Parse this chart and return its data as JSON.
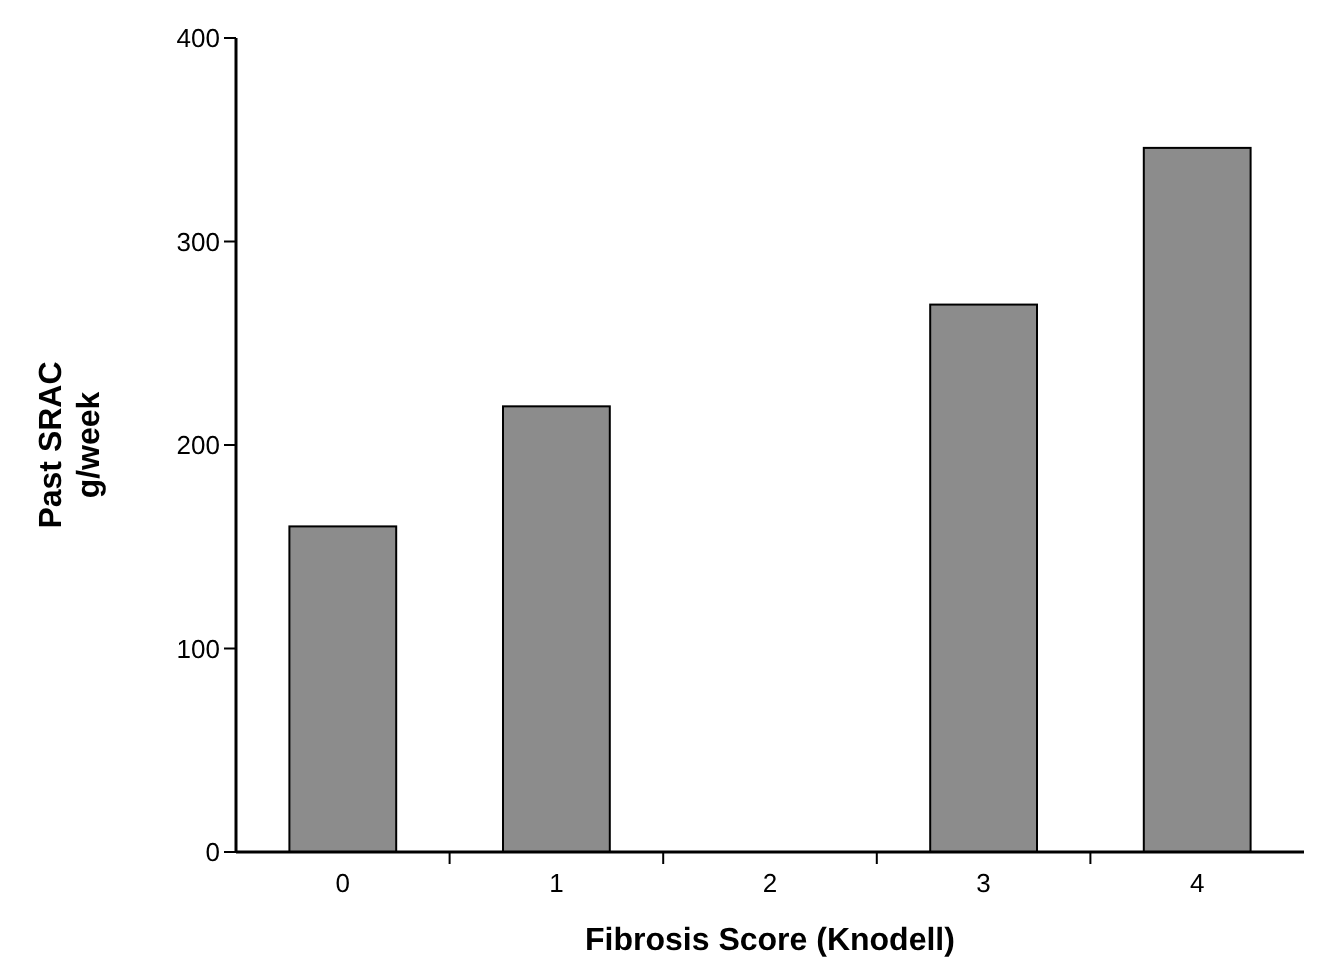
{
  "chart_data": {
    "type": "bar",
    "xlabel": "Fibrosis Score (Knodell)",
    "ylabel": "Past SRAC\ng/week",
    "categories": [
      "0",
      "1",
      "2",
      "3",
      "4"
    ],
    "values": [
      160,
      219,
      null,
      269,
      346
    ],
    "color": "#8c8c8c",
    "ylim": [
      0,
      400
    ],
    "yticks": [
      0,
      100,
      200,
      300,
      400
    ],
    "grid": false
  }
}
